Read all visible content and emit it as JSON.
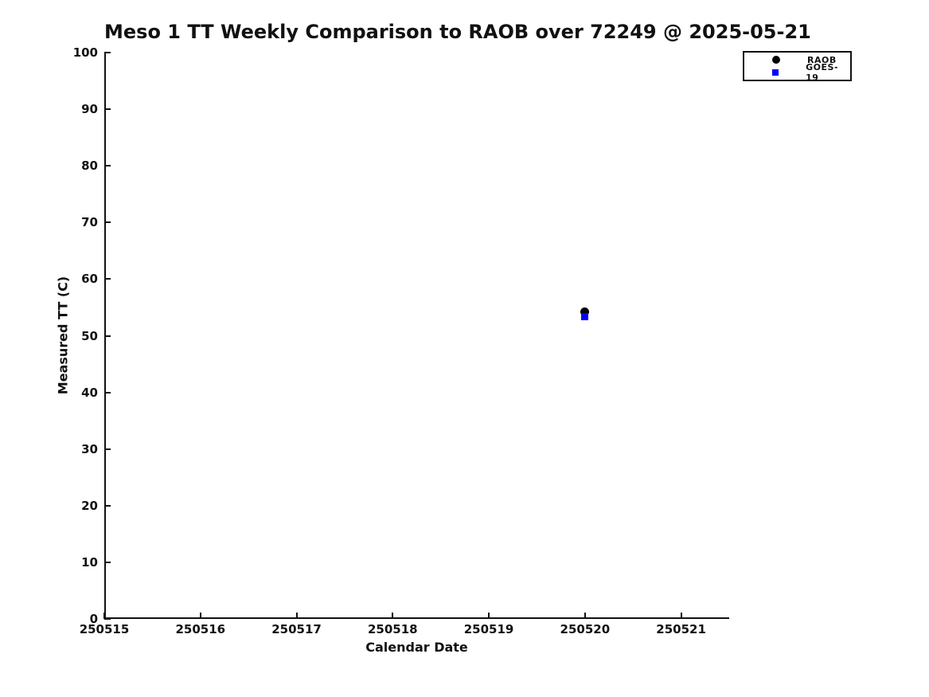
{
  "chart_data": {
    "type": "scatter",
    "title": "Meso 1 TT Weekly Comparison to RAOB over 72249 @ 2025-05-21",
    "xlabel": "Calendar Date",
    "ylabel": "Measured TT (C)",
    "xlim": [
      250515,
      250521.5
    ],
    "ylim": [
      0,
      100
    ],
    "xticks": [
      250515,
      250516,
      250517,
      250518,
      250519,
      250520,
      250521
    ],
    "yticks": [
      0,
      10,
      20,
      30,
      40,
      50,
      60,
      70,
      80,
      90,
      100
    ],
    "grid": false,
    "legend_position": "upper-right-outside-plot",
    "series": [
      {
        "name": "RAOB",
        "marker": "circle",
        "color": "#000000",
        "points": [
          {
            "x": 250520,
            "y": 54.2
          }
        ]
      },
      {
        "name": "GOES-19",
        "marker": "square",
        "color": "#0000ff",
        "points": [
          {
            "x": 250520,
            "y": 53.4
          }
        ]
      }
    ]
  }
}
